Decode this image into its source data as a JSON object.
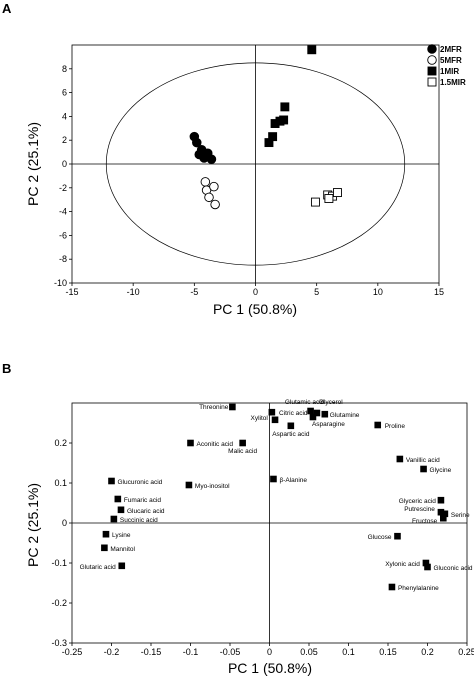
{
  "chart_data": [
    {
      "type": "scatter",
      "panel_label": "A",
      "title": "",
      "xlabel": "PC 1 (50.8%)",
      "ylabel": "PC 2 (25.1%)",
      "xlim": [
        -15,
        15
      ],
      "ylim": [
        -10,
        10
      ],
      "xticks": [
        -15,
        -10,
        -5,
        0,
        5,
        10,
        15
      ],
      "yticks": [
        -10,
        -8,
        -6,
        -4,
        -2,
        0,
        2,
        4,
        6,
        8
      ],
      "grid": false,
      "legend_position": "top-right",
      "confidence_ellipse": {
        "center": [
          0,
          0
        ],
        "radii": [
          12.2,
          8.5
        ]
      },
      "series": [
        {
          "name": "2MFR",
          "marker": "filled-circle",
          "points": [
            [
              -5,
              2.3
            ],
            [
              -4.8,
              1.8
            ],
            [
              -4.4,
              1.2
            ],
            [
              -4.6,
              0.8
            ],
            [
              -4.2,
              0.5
            ],
            [
              -3.9,
              0.9
            ],
            [
              -3.6,
              0.4
            ]
          ]
        },
        {
          "name": "5MFR",
          "marker": "open-circle",
          "points": [
            [
              -4.1,
              -1.5
            ],
            [
              -4,
              -2.2
            ],
            [
              -3.4,
              -1.9
            ],
            [
              -3.8,
              -2.8
            ],
            [
              -3.3,
              -3.4
            ]
          ]
        },
        {
          "name": "1MIR",
          "marker": "filled-square",
          "points": [
            [
              4.6,
              9.6
            ],
            [
              2.4,
              4.8
            ],
            [
              2.3,
              3.7
            ],
            [
              2.0,
              3.6
            ],
            [
              1.6,
              3.4
            ],
            [
              1.4,
              2.3
            ],
            [
              1.1,
              1.8
            ]
          ]
        },
        {
          "name": "1.5MIR",
          "marker": "open-square",
          "points": [
            [
              4.9,
              -3.2
            ],
            [
              5.9,
              -2.6
            ],
            [
              6.3,
              -2.7
            ],
            [
              6.7,
              -2.4
            ],
            [
              6.0,
              -2.9
            ]
          ]
        }
      ]
    },
    {
      "type": "scatter",
      "panel_label": "B",
      "title": "",
      "xlabel": "PC 1 (50.8%)",
      "ylabel": "PC 2 (25.1%)",
      "xlim": [
        -0.25,
        0.25
      ],
      "ylim": [
        -0.3,
        0.3
      ],
      "xticks": [
        -0.25,
        -0.2,
        -0.15,
        -0.1,
        -0.05,
        0,
        0.05,
        0.1,
        0.15,
        0.2,
        0.25
      ],
      "yticks": [
        -0.3,
        -0.2,
        -0.1,
        0,
        0.1,
        0.2
      ],
      "grid": false,
      "points": [
        {
          "label": "Threonine",
          "x": -0.047,
          "y": 0.29
        },
        {
          "label": "Xylitol",
          "x": 0.003,
          "y": 0.277
        },
        {
          "label": "Glutamic acid",
          "x": 0.052,
          "y": 0.28
        },
        {
          "label": "Citric acid",
          "x": 0.007,
          "y": 0.258
        },
        {
          "label": "Glycerol",
          "x": 0.06,
          "y": 0.275
        },
        {
          "label": "Glutamine",
          "x": 0.07,
          "y": 0.272
        },
        {
          "label": "Asparagine",
          "x": 0.055,
          "y": 0.265
        },
        {
          "label": "Aspartic acid",
          "x": 0.027,
          "y": 0.243
        },
        {
          "label": "Proline",
          "x": 0.137,
          "y": 0.245
        },
        {
          "label": "Aconitic acid",
          "x": -0.1,
          "y": 0.2
        },
        {
          "label": "Malic acid",
          "x": -0.034,
          "y": 0.2
        },
        {
          "label": "Vanillic acid",
          "x": 0.165,
          "y": 0.16
        },
        {
          "label": "Glycine",
          "x": 0.195,
          "y": 0.135
        },
        {
          "label": "β-Alanine",
          "x": 0.005,
          "y": 0.11
        },
        {
          "label": "Glucuronic acid",
          "x": -0.2,
          "y": 0.105
        },
        {
          "label": "Myo-inositol",
          "x": -0.102,
          "y": 0.095
        },
        {
          "label": "Fumaric acid",
          "x": -0.192,
          "y": 0.06
        },
        {
          "label": "Glucaric acid",
          "x": -0.188,
          "y": 0.033
        },
        {
          "label": "Succinic acid",
          "x": -0.197,
          "y": 0.01
        },
        {
          "label": "Glyceric acid",
          "x": 0.217,
          "y": 0.057
        },
        {
          "label": "Putrescine",
          "x": 0.217,
          "y": 0.027
        },
        {
          "label": "Serine",
          "x": 0.222,
          "y": 0.023
        },
        {
          "label": "Fructose",
          "x": 0.22,
          "y": 0.012
        },
        {
          "label": "Lysine",
          "x": -0.207,
          "y": -0.028
        },
        {
          "label": "Glucose",
          "x": 0.162,
          "y": -0.033
        },
        {
          "label": "Mannitol",
          "x": -0.209,
          "y": -0.062
        },
        {
          "label": "Glutaric acid",
          "x": -0.187,
          "y": -0.107
        },
        {
          "label": "Xylonic acid",
          "x": 0.198,
          "y": -0.1
        },
        {
          "label": "Gluconic acid",
          "x": 0.2,
          "y": -0.11
        },
        {
          "label": "Phenylalanine",
          "x": 0.155,
          "y": -0.16
        }
      ]
    }
  ]
}
